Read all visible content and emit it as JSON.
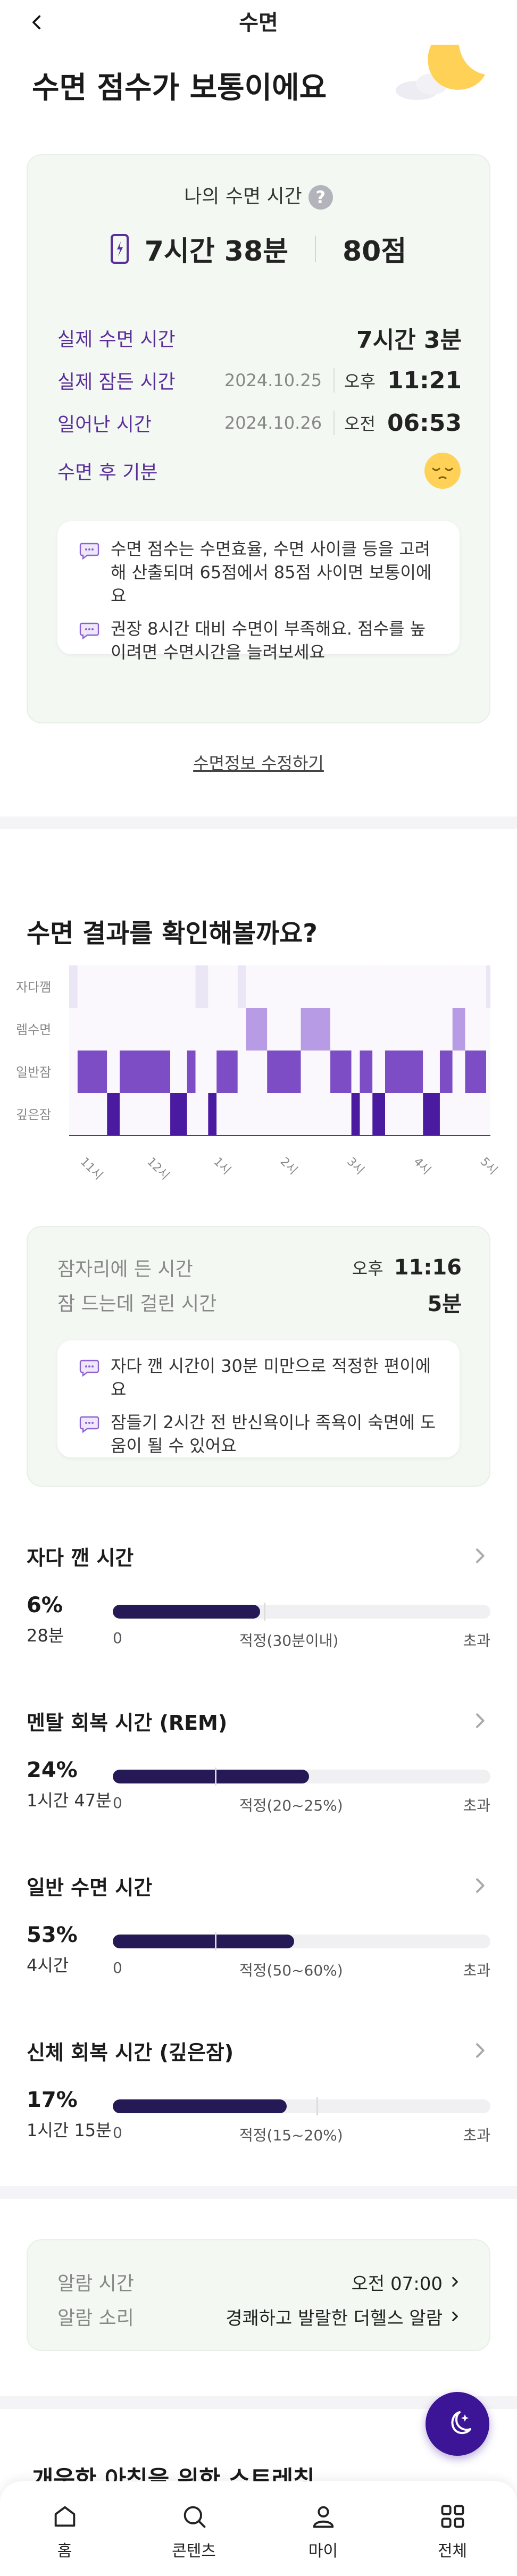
{
  "header": {
    "title": "수면"
  },
  "score_title": "수면 점수가 보통이에요",
  "summary": {
    "my_sleep_label": "나의 수면 시간",
    "help": "?",
    "total_time": "7시간 38분",
    "score": "80점",
    "rows": [
      {
        "label": "실제 수면 시간",
        "date": "",
        "ampm": "",
        "value": "7시간 3분"
      },
      {
        "label": "실제 잠든 시간",
        "date": "2024.10.25",
        "ampm": "오후",
        "value": "11:21"
      },
      {
        "label": "일어난 시간",
        "date": "2024.10.26",
        "ampm": "오전",
        "value": "06:53"
      },
      {
        "label": "수면 후 기분",
        "date": "",
        "ampm": "",
        "value": ""
      }
    ],
    "notes": [
      "수면 점수는 수면효율, 수면 사이클 등을 고려해 산출되며 65점에서 85점 사이면 보통이에요",
      "권장 8시간 대비 수면이 부족해요. 점수를 높이려면 수면시간을 늘려보세요"
    ],
    "edit_link": "수면정보 수정하기"
  },
  "results": {
    "title": "수면 결과를 확인해볼까요?"
  },
  "chart_data": {
    "type": "heatmap",
    "rows": [
      "자다깸",
      "렘수면",
      "일반잠",
      "깊은잠"
    ],
    "x_ticks": [
      "11시",
      "12시",
      "1시",
      "2시",
      "3시",
      "4시",
      "5시"
    ],
    "colors": {
      "awake": "#ebe6f6",
      "rem": "#b79be4",
      "light": "#7c4dc4",
      "deep": "#4a1aa0"
    },
    "segments": [
      [
        "awake",
        0.0,
        0.02
      ],
      [
        "light",
        0.02,
        0.09
      ],
      [
        "deep",
        0.09,
        0.12
      ],
      [
        "light",
        0.12,
        0.24
      ],
      [
        "deep",
        0.24,
        0.28
      ],
      [
        "light",
        0.28,
        0.3
      ],
      [
        "awake",
        0.3,
        0.33
      ],
      [
        "deep",
        0.33,
        0.35
      ],
      [
        "light",
        0.35,
        0.4
      ],
      [
        "awake",
        0.4,
        0.42
      ],
      [
        "rem",
        0.42,
        0.47
      ],
      [
        "light",
        0.47,
        0.55
      ],
      [
        "rem",
        0.55,
        0.62
      ],
      [
        "light",
        0.62,
        0.67
      ],
      [
        "deep",
        0.67,
        0.69
      ],
      [
        "light",
        0.69,
        0.72
      ],
      [
        "deep",
        0.72,
        0.75
      ],
      [
        "light",
        0.75,
        0.84
      ],
      [
        "deep",
        0.84,
        0.88
      ],
      [
        "light",
        0.88,
        0.91
      ],
      [
        "rem",
        0.91,
        0.94
      ],
      [
        "light",
        0.94,
        0.99
      ],
      [
        "awake",
        0.99,
        1.0
      ]
    ]
  },
  "bedtime": {
    "rows": [
      {
        "label": "잠자리에 든 시간",
        "ampm": "오후",
        "value": "11:16"
      },
      {
        "label": "잠 드는데 걸린 시간",
        "ampm": "",
        "value": "5분"
      }
    ],
    "notes": [
      "자다 깬 시간이 30분 미만으로 적정한 편이에요",
      "잠들기 2시간 전 반신욕이나 족욕이 숙면에 도움이 될 수 있어요"
    ]
  },
  "stages": [
    {
      "title": "자다 깬 시간",
      "pct": "6%",
      "duration": "28분",
      "fill": 0.39,
      "tick": 0.4,
      "zero": "0",
      "range": "적정(30분이내)",
      "over": "초과"
    },
    {
      "title": "멘탈 회복 시간 (REM)",
      "pct": "24%",
      "duration": "1시간 47분",
      "fill": 0.52,
      "tick": 0.27,
      "zero": "0",
      "range": "적정(20~25%)",
      "over": "초과"
    },
    {
      "title": "일반 수면 시간",
      "pct": "53%",
      "duration": "4시간",
      "fill": 0.48,
      "tick": 0.27,
      "zero": "0",
      "range": "적정(50~60%)",
      "over": "초과"
    },
    {
      "title": "신체 회복 시간 (깊은잠)",
      "pct": "17%",
      "duration": "1시간 15분",
      "fill": 0.46,
      "tick": 0.54,
      "zero": "0",
      "range": "적정(15~20%)",
      "over": "초과"
    }
  ],
  "alarm": {
    "time_label": "알람 시간",
    "time_value": "오전 07:00",
    "sound_label": "알람 소리",
    "sound_value": "경쾌하고 발랄한 더헬스 알람"
  },
  "peek_text": "개운한 아침을 위한 스트레칭",
  "nav": [
    {
      "label": "홈",
      "icon": "home-icon"
    },
    {
      "label": "콘텐츠",
      "icon": "search-icon"
    },
    {
      "label": "마이",
      "icon": "person-icon"
    },
    {
      "label": "전체",
      "icon": "grid-icon"
    }
  ]
}
